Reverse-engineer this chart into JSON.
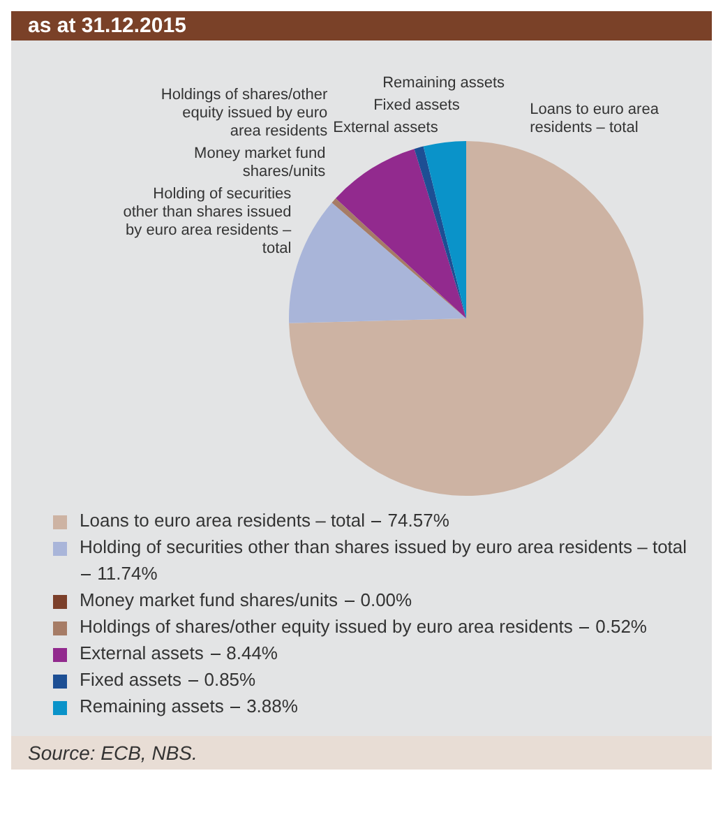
{
  "chart_data": {
    "type": "pie",
    "title": "as at 31.12.2015",
    "categories": [
      "Loans to euro area residents – total",
      "Holding of securities other than shares issued by euro area residents – total",
      "Money market fund shares/units",
      "Holdings of shares/other equity issued by euro area residents",
      "External assets",
      "Fixed assets",
      "Remaining assets"
    ],
    "values": [
      74.57,
      11.74,
      0.0,
      0.52,
      8.44,
      0.85,
      3.88
    ],
    "colors": [
      "#cdb3a3",
      "#a9b5d9",
      "#7b3f2a",
      "#a67c66",
      "#922a8e",
      "#1d4f94",
      "#0a93c9"
    ],
    "value_labels": [
      "74.57%",
      "11.74%",
      "0.00%",
      "0.52%",
      "8.44%",
      "0.85%",
      "3.88%"
    ],
    "legend": "bottom",
    "annotations": [
      "Source: ECB, NBS."
    ]
  }
}
